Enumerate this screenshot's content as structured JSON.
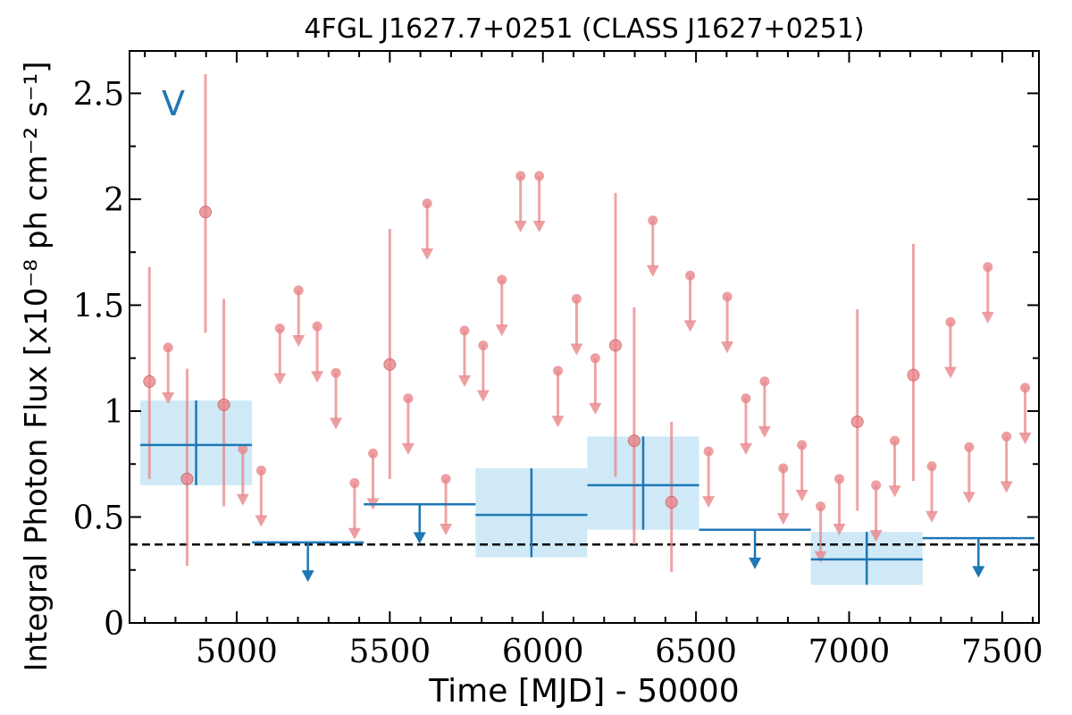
{
  "chart_data": {
    "type": "scatter",
    "title": "4FGL J1627.7+0251 (CLASS J1627+0251)",
    "xlabel": "Time [MJD] - 50000",
    "ylabel": "Integral Photon Flux [x10⁻⁸ ph cm⁻² s⁻¹]",
    "panel_label": "V",
    "xlim": [
      4650,
      7620
    ],
    "ylim": [
      0,
      2.7
    ],
    "xticks": [
      5000,
      5500,
      6000,
      6500,
      7000,
      7500
    ],
    "xtick_labels": [
      "5000",
      "5500",
      "6000",
      "6500",
      "7000",
      "7500"
    ],
    "yticks": [
      0,
      0.5,
      1,
      1.5,
      2,
      2.5
    ],
    "ytick_labels": [
      "0",
      "0.5",
      "1",
      "1.5",
      "2",
      "2.5"
    ],
    "colors": {
      "monthly": "#e8868a",
      "yearly": "#1f77b4",
      "band": "#cfe9f7",
      "reference": "#000000"
    },
    "reference_line": {
      "y": 0.37,
      "style": "dashed"
    },
    "series": [
      {
        "name": "monthly detections",
        "points": [
          {
            "x": 4715,
            "y": 1.14,
            "ylo": 0.68,
            "yhi": 1.68
          },
          {
            "x": 4838,
            "y": 0.68,
            "ylo": 0.27,
            "yhi": 1.2
          },
          {
            "x": 4898,
            "y": 1.94,
            "ylo": 1.37,
            "yhi": 2.59
          },
          {
            "x": 4958,
            "y": 1.03,
            "ylo": 0.55,
            "yhi": 1.53
          },
          {
            "x": 5500,
            "y": 1.22,
            "ylo": 0.68,
            "yhi": 1.86
          },
          {
            "x": 6237,
            "y": 1.31,
            "ylo": 0.69,
            "yhi": 2.03
          },
          {
            "x": 6298,
            "y": 0.86,
            "ylo": 0.37,
            "yhi": 1.49
          },
          {
            "x": 6420,
            "y": 0.57,
            "ylo": 0.24,
            "yhi": 0.95
          },
          {
            "x": 7027,
            "y": 0.95,
            "ylo": 0.53,
            "yhi": 1.48
          },
          {
            "x": 7210,
            "y": 1.17,
            "ylo": 0.67,
            "yhi": 1.79
          }
        ]
      },
      {
        "name": "monthly upper limits",
        "points": [
          {
            "x": 4776,
            "y": 1.3
          },
          {
            "x": 5020,
            "y": 0.82
          },
          {
            "x": 5080,
            "y": 0.72
          },
          {
            "x": 5141,
            "y": 1.39
          },
          {
            "x": 5202,
            "y": 1.57
          },
          {
            "x": 5263,
            "y": 1.4
          },
          {
            "x": 5324,
            "y": 1.18
          },
          {
            "x": 5385,
            "y": 0.66
          },
          {
            "x": 5445,
            "y": 0.8
          },
          {
            "x": 5560,
            "y": 1.06
          },
          {
            "x": 5622,
            "y": 1.98
          },
          {
            "x": 5683,
            "y": 0.68
          },
          {
            "x": 5744,
            "y": 1.38
          },
          {
            "x": 5805,
            "y": 1.31
          },
          {
            "x": 5866,
            "y": 1.62
          },
          {
            "x": 5927,
            "y": 2.11
          },
          {
            "x": 5988,
            "y": 2.11
          },
          {
            "x": 6049,
            "y": 1.19
          },
          {
            "x": 6110,
            "y": 1.53
          },
          {
            "x": 6171,
            "y": 1.25
          },
          {
            "x": 6359,
            "y": 1.9
          },
          {
            "x": 6541,
            "y": 0.81
          },
          {
            "x": 6602,
            "y": 1.54
          },
          {
            "x": 6481,
            "y": 1.64
          },
          {
            "x": 6663,
            "y": 1.06
          },
          {
            "x": 6724,
            "y": 1.14
          },
          {
            "x": 6785,
            "y": 0.73
          },
          {
            "x": 6846,
            "y": 0.84
          },
          {
            "x": 6907,
            "y": 0.55
          },
          {
            "x": 6968,
            "y": 0.68
          },
          {
            "x": 7088,
            "y": 0.65
          },
          {
            "x": 7149,
            "y": 0.86
          },
          {
            "x": 7270,
            "y": 0.74
          },
          {
            "x": 7331,
            "y": 1.42
          },
          {
            "x": 7392,
            "y": 0.83
          },
          {
            "x": 7453,
            "y": 1.68
          },
          {
            "x": 7514,
            "y": 0.88
          },
          {
            "x": 7575,
            "y": 1.11
          }
        ]
      },
      {
        "name": "yearly detections",
        "bins": [
          {
            "x0": 4685,
            "x1": 5050,
            "y": 0.84,
            "ylo": 0.65,
            "yhi": 1.05
          },
          {
            "x0": 5780,
            "x1": 6145,
            "y": 0.51,
            "ylo": 0.31,
            "yhi": 0.73
          },
          {
            "x0": 6145,
            "x1": 6510,
            "y": 0.65,
            "ylo": 0.44,
            "yhi": 0.88
          },
          {
            "x0": 6875,
            "x1": 7240,
            "y": 0.3,
            "ylo": 0.18,
            "yhi": 0.43
          }
        ]
      },
      {
        "name": "yearly upper limits",
        "bins": [
          {
            "x0": 5050,
            "x1": 5415,
            "y": 0.38
          },
          {
            "x0": 5415,
            "x1": 5780,
            "y": 0.56
          },
          {
            "x0": 6510,
            "x1": 6875,
            "y": 0.44
          },
          {
            "x0": 7240,
            "x1": 7605,
            "y": 0.4
          }
        ]
      }
    ]
  }
}
